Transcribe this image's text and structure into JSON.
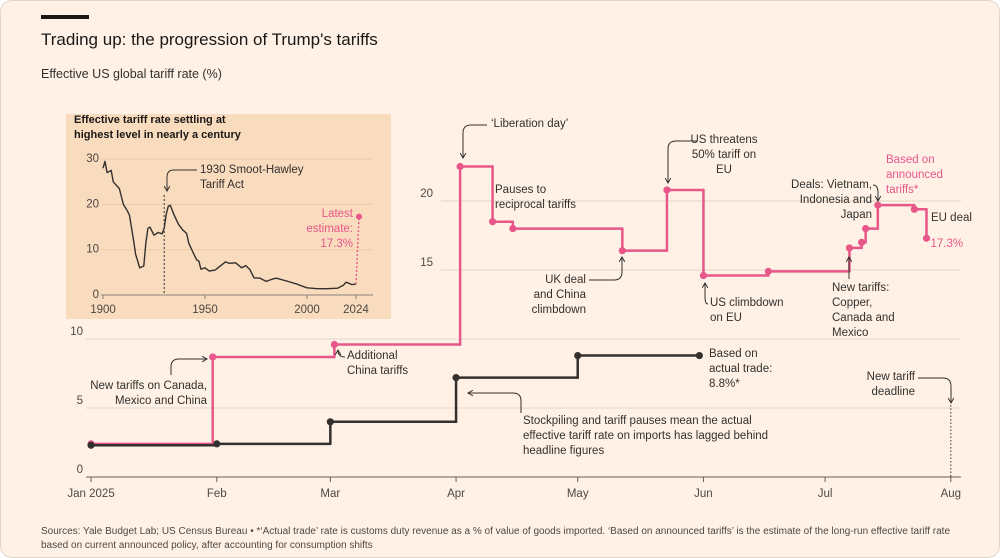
{
  "chart_data": [
    {
      "type": "line",
      "title": "Trading up: the progression of Trump's tariffs",
      "subtitle": "Effective US global tariff rate (%)",
      "xticks": [
        {
          "value": 0,
          "label": "Jan 2025"
        },
        {
          "value": 31,
          "label": "Feb"
        },
        {
          "value": 59,
          "label": "Mar"
        },
        {
          "value": 90,
          "label": "Apr"
        },
        {
          "value": 120,
          "label": "May"
        },
        {
          "value": 151,
          "label": "Jun"
        },
        {
          "value": 181,
          "label": "Jul"
        },
        {
          "value": 212,
          "label": "Aug"
        }
      ],
      "xlim": [
        -1,
        215
      ],
      "ylim": [
        0,
        24
      ],
      "yticks": [
        0,
        5,
        10,
        15,
        20
      ],
      "grid": true,
      "step": "post",
      "series": [
        {
          "name": "Based on\nannounced\ntariffs*",
          "color": "#e8578a",
          "x": [
            0,
            30,
            60,
            91,
            99,
            104,
            131,
            142,
            151,
            167,
            187,
            190,
            191,
            194,
            203,
            206
          ],
          "values": [
            2.4,
            8.7,
            9.6,
            22.5,
            18.5,
            18.0,
            16.4,
            20.8,
            14.6,
            14.9,
            16.6,
            17.0,
            18.0,
            19.7,
            19.4,
            17.3
          ],
          "value_labels": [
            null,
            null,
            null,
            null,
            null,
            null,
            null,
            null,
            null,
            null,
            null,
            null,
            null,
            null,
            null,
            "17.3%"
          ]
        },
        {
          "name": "Based on\nactual trade:\n8.8%*",
          "color": "#33302e",
          "x": [
            0,
            31,
            59,
            90,
            120,
            150
          ],
          "values": [
            2.3,
            2.4,
            4.0,
            7.2,
            8.8,
            8.8
          ]
        }
      ],
      "annotations": [
        "‘Liberation day’",
        "Pauses to\nreciprocal tariffs",
        "US threatens\n50% tariff on\nEU",
        "Deals: Vietnam,\nIndonesia and\nJapan",
        "EU deal",
        "UK deal\nand China\nclimbdown",
        "US climbdown\non EU",
        "New tariffs:\nCopper,\nCanada and\nMexico",
        "Additional\nChina tariffs",
        "New tariffs on Canada,\nMexico and China",
        "Stockpiling and tariff pauses mean the actual\neffective tariff rate on imports has lagged behind\nheadline figures",
        "New tariff\ndeadline"
      ]
    },
    {
      "type": "line",
      "title": "Effective tariff rate settling at\nhighest level in nearly a century",
      "xlim": [
        1897,
        2030
      ],
      "xticks": [
        1900,
        1950,
        2000,
        2024
      ],
      "ylim": [
        0,
        31
      ],
      "yticks": [
        0,
        10,
        20,
        30
      ],
      "marker": {
        "x": 1930,
        "label": "1930 Smoot-Hawley\nTariff Act"
      },
      "series": [
        {
          "color": "#33302e",
          "x": [
            1900,
            1901,
            1902,
            1904,
            1905,
            1908,
            1910,
            1912,
            1913,
            1915,
            1916,
            1917,
            1918,
            1919,
            1920,
            1921,
            1922,
            1923,
            1925,
            1927,
            1929,
            1930,
            1931,
            1932,
            1933,
            1935,
            1937,
            1939,
            1941,
            1942,
            1944,
            1946,
            1947,
            1948,
            1950,
            1952,
            1955,
            1960,
            1962,
            1965,
            1968,
            1970,
            1972,
            1974,
            1977,
            1980,
            1983,
            1985,
            1990,
            1995,
            2000,
            2005,
            2010,
            2015,
            2018,
            2019,
            2020,
            2022,
            2024
          ],
          "values": [
            28,
            29.5,
            27,
            27.5,
            25,
            23.5,
            20,
            18.5,
            17.6,
            12,
            9,
            7.5,
            6,
            6.2,
            6.4,
            11.4,
            14.7,
            15,
            13.2,
            13.8,
            13.5,
            14.8,
            17.8,
            19.6,
            19.8,
            17.5,
            15.6,
            14.4,
            13.6,
            11.5,
            9.5,
            7.7,
            7.5,
            5.7,
            6.0,
            5.3,
            5.5,
            7.3,
            7.0,
            7.1,
            6.0,
            6.5,
            5.6,
            3.8,
            3.7,
            3.0,
            3.5,
            3.7,
            3.1,
            2.4,
            1.6,
            1.4,
            1.4,
            1.5,
            2.2,
            2.8,
            2.7,
            2.3,
            2.4
          ]
        },
        {
          "name": "Latest\nestimate:\n17.3%",
          "color": "#e8578a",
          "dashed": true,
          "x": [
            2024,
            2025.5
          ],
          "values": [
            2.4,
            17.3
          ]
        }
      ]
    }
  ],
  "source": "Sources: Yale Budget Lab; US Census Bureau • *‘Actual trade’ rate is customs duty revenue as a % of value of goods imported. ‘Based on announced tariffs’ is the estimate of the long-run effective tariff rate based on current announced policy, after accounting for consumption shifts"
}
